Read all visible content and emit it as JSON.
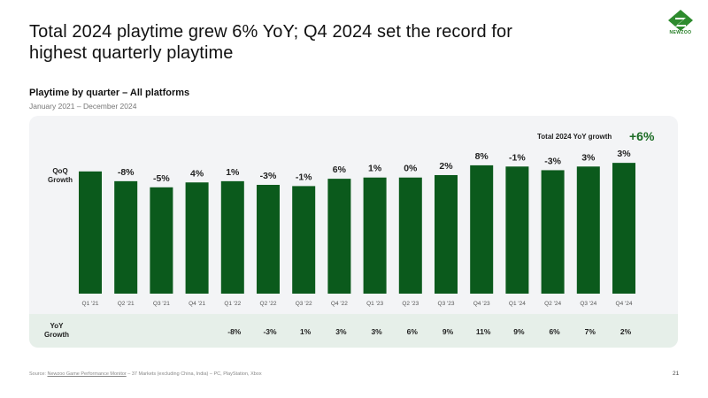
{
  "headline": "Total 2024 playtime grew 6% YoY; Q4 2024 set the record for highest quarterly playtime",
  "subtitle": "Playtime by quarter – All platforms",
  "date_range": "January 2021 – December 2024",
  "logo_text": "NEWZOO",
  "row_labels": {
    "qoq": "QoQ\nGrowth",
    "yoy": "YoY\nGrowth"
  },
  "total_yoy": {
    "label": "Total 2024 YoY growth",
    "value": "+6%"
  },
  "footnote": {
    "prefix": "Source: ",
    "link": "Newzoo Game Performance Monitor",
    "rest": " – 37 Markets (excluding China, India) – PC, PlayStation, Xbox"
  },
  "page_number": "21",
  "colors": {
    "bar": "#0b5a1c",
    "accent": "#1b6b24",
    "panel": "#f3f4f6",
    "yoy_band": "#e6efe9"
  },
  "chart_data": {
    "type": "bar",
    "title": "Playtime by quarter – All platforms",
    "categories": [
      "Q1 '21",
      "Q2 '21",
      "Q3 '21",
      "Q4 '21",
      "Q1 '22",
      "Q2 '22",
      "Q3 '22",
      "Q4 '22",
      "Q1 '23",
      "Q2 '23",
      "Q3 '23",
      "Q4 '23",
      "Q1 '24",
      "Q2 '24",
      "Q3 '24",
      "Q4 '24"
    ],
    "values": [
      100,
      92,
      87,
      91,
      92,
      89,
      88,
      94,
      95,
      95,
      97,
      105,
      104,
      101,
      104,
      107
    ],
    "ylim": [
      0,
      110
    ],
    "qoq_growth": [
      "",
      "-8%",
      "-5%",
      "4%",
      "1%",
      "-3%",
      "-1%",
      "6%",
      "1%",
      "0%",
      "2%",
      "8%",
      "-1%",
      "-3%",
      "3%",
      "3%"
    ],
    "yoy_growth": [
      "",
      "",
      "",
      "",
      "-8%",
      "-3%",
      "1%",
      "3%",
      "3%",
      "6%",
      "9%",
      "11%",
      "9%",
      "6%",
      "7%",
      "2%"
    ],
    "xlabel": "",
    "ylabel": "",
    "grid": false,
    "legend": "none"
  }
}
